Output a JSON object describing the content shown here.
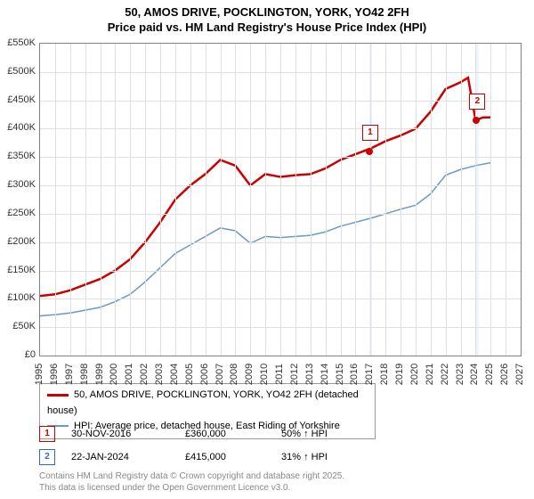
{
  "title_line1": "50, AMOS DRIVE, POCKLINGTON, YORK, YO42 2FH",
  "title_line2": "Price paid vs. HM Land Registry's House Price Index (HPI)",
  "chart": {
    "type": "line",
    "background_color": "#ffffff",
    "grid_color": "#e0e0e0",
    "border_color": "#808080",
    "ylim": [
      0,
      550000
    ],
    "ytick_step": 50000,
    "ytick_labels": [
      "£0",
      "£50K",
      "£100K",
      "£150K",
      "£200K",
      "£250K",
      "£300K",
      "£350K",
      "£400K",
      "£450K",
      "£500K",
      "£550K"
    ],
    "xlim": [
      1995,
      2027
    ],
    "xtick_step": 1,
    "xtick_labels": [
      "1995",
      "1996",
      "1997",
      "1998",
      "1999",
      "2000",
      "2001",
      "2002",
      "2003",
      "2004",
      "2005",
      "2006",
      "2007",
      "2008",
      "2009",
      "2010",
      "2011",
      "2012",
      "2013",
      "2014",
      "2015",
      "2016",
      "2017",
      "2018",
      "2019",
      "2020",
      "2021",
      "2022",
      "2023",
      "2024",
      "2025",
      "2026",
      "2027"
    ],
    "highlight_bands": [
      {
        "from": 2016.9,
        "to": 2017.1,
        "color": "rgba(200,220,255,0.3)"
      },
      {
        "from": 2024.0,
        "to": 2024.2,
        "color": "rgba(200,220,255,0.3)"
      }
    ],
    "series": [
      {
        "name": "price_paid",
        "label": "50, AMOS DRIVE, POCKLINGTON, YORK, YO42 2FH (detached house)",
        "color": "#cc0000",
        "line_width": 2.5,
        "points": [
          [
            1995,
            105000
          ],
          [
            1996,
            108000
          ],
          [
            1997,
            115000
          ],
          [
            1998,
            125000
          ],
          [
            1999,
            135000
          ],
          [
            2000,
            150000
          ],
          [
            2001,
            170000
          ],
          [
            2002,
            200000
          ],
          [
            2003,
            235000
          ],
          [
            2004,
            275000
          ],
          [
            2005,
            300000
          ],
          [
            2006,
            320000
          ],
          [
            2007,
            345000
          ],
          [
            2008,
            335000
          ],
          [
            2009,
            300000
          ],
          [
            2010,
            320000
          ],
          [
            2011,
            315000
          ],
          [
            2012,
            318000
          ],
          [
            2013,
            320000
          ],
          [
            2014,
            330000
          ],
          [
            2015,
            345000
          ],
          [
            2016,
            355000
          ],
          [
            2017,
            365000
          ],
          [
            2018,
            378000
          ],
          [
            2019,
            388000
          ],
          [
            2020,
            400000
          ],
          [
            2021,
            430000
          ],
          [
            2022,
            470000
          ],
          [
            2023,
            482000
          ],
          [
            2023.5,
            490000
          ],
          [
            2024,
            415000
          ],
          [
            2024.5,
            420000
          ],
          [
            2025,
            420000
          ]
        ]
      },
      {
        "name": "hpi",
        "label": "HPI: Average price, detached house, East Riding of Yorkshire",
        "color": "#6699cc",
        "line_width": 1.5,
        "points": [
          [
            1995,
            70000
          ],
          [
            1996,
            72000
          ],
          [
            1997,
            75000
          ],
          [
            1998,
            80000
          ],
          [
            1999,
            85000
          ],
          [
            2000,
            95000
          ],
          [
            2001,
            108000
          ],
          [
            2002,
            130000
          ],
          [
            2003,
            155000
          ],
          [
            2004,
            180000
          ],
          [
            2005,
            195000
          ],
          [
            2006,
            210000
          ],
          [
            2007,
            225000
          ],
          [
            2008,
            220000
          ],
          [
            2009,
            198000
          ],
          [
            2010,
            210000
          ],
          [
            2011,
            208000
          ],
          [
            2012,
            210000
          ],
          [
            2013,
            212000
          ],
          [
            2014,
            218000
          ],
          [
            2015,
            228000
          ],
          [
            2016,
            235000
          ],
          [
            2017,
            242000
          ],
          [
            2018,
            250000
          ],
          [
            2019,
            258000
          ],
          [
            2020,
            265000
          ],
          [
            2021,
            285000
          ],
          [
            2022,
            318000
          ],
          [
            2023,
            328000
          ],
          [
            2024,
            335000
          ],
          [
            2025,
            340000
          ]
        ]
      }
    ],
    "sale_markers": [
      {
        "label": "1",
        "year": 2016.92,
        "price": 360000
      },
      {
        "label": "2",
        "year": 2024.06,
        "price": 415000
      }
    ]
  },
  "legend": {
    "series1": "50, AMOS DRIVE, POCKLINGTON, YORK, YO42 2FH (detached house)",
    "series2": "HPI: Average price, detached house, East Riding of Yorkshire"
  },
  "sales": [
    {
      "marker": "1",
      "date": "30-NOV-2016",
      "price": "£360,000",
      "pct": "50% ↑ HPI"
    },
    {
      "marker": "2",
      "date": "22-JAN-2024",
      "price": "£415,000",
      "pct": "31% ↑ HPI"
    }
  ],
  "footer_line1": "Contains HM Land Registry data © Crown copyright and database right 2025.",
  "footer_line2": "This data is licensed under the Open Government Licence v3.0."
}
